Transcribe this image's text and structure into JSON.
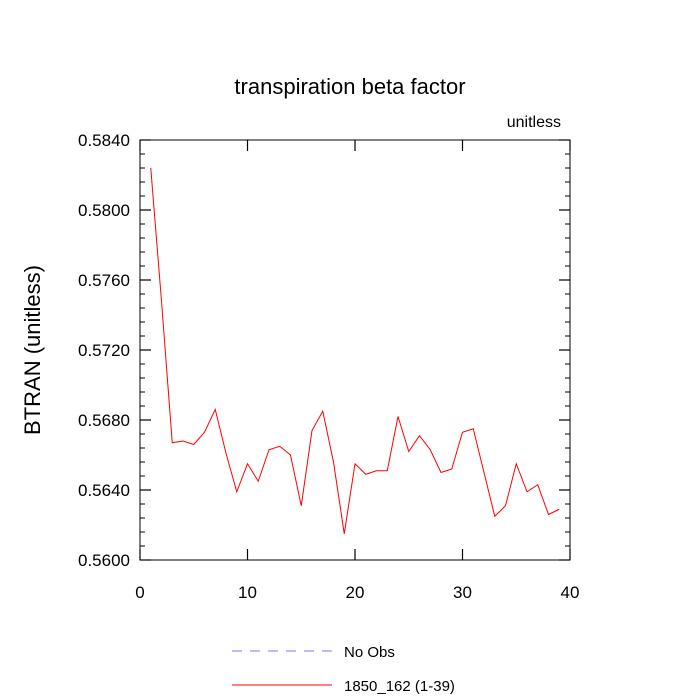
{
  "chart_data": {
    "type": "line",
    "title": "transpiration beta factor",
    "subtitle": "unitless",
    "xlabel": "",
    "ylabel": "BTRAN  (unitless)",
    "xlim": [
      0,
      40
    ],
    "ylim": [
      0.56,
      0.584
    ],
    "x_ticks": [
      0,
      10,
      20,
      30,
      40
    ],
    "y_ticks": [
      0.56,
      0.564,
      0.568,
      0.572,
      0.576,
      0.58,
      0.584
    ],
    "x_tick_labels": [
      "0",
      "10",
      "20",
      "30",
      "40"
    ],
    "y_tick_labels": [
      "0.5600",
      "0.5640",
      "0.5680",
      "0.5720",
      "0.5760",
      "0.5800",
      "0.5840"
    ],
    "grid": false,
    "legend_position": "bottom-center",
    "series": [
      {
        "name": "No Obs",
        "color": "#7777ff",
        "dashed": true,
        "x": [],
        "y": []
      },
      {
        "name": "1850_162 (1-39)",
        "color": "#ff0000",
        "dashed": false,
        "x": [
          1,
          2,
          3,
          4,
          5,
          6,
          7,
          8,
          9,
          10,
          11,
          12,
          13,
          14,
          15,
          16,
          17,
          18,
          19,
          20,
          21,
          22,
          23,
          24,
          25,
          26,
          27,
          28,
          29,
          30,
          31,
          32,
          33,
          34,
          35,
          36,
          37,
          38,
          39
        ],
        "y": [
          0.5824,
          0.5748,
          0.5667,
          0.5668,
          0.5666,
          0.5673,
          0.5686,
          0.5661,
          0.5639,
          0.5655,
          0.5645,
          0.5663,
          0.5665,
          0.566,
          0.5631,
          0.5674,
          0.5685,
          0.5656,
          0.5615,
          0.5655,
          0.5649,
          0.5651,
          0.5651,
          0.5682,
          0.5662,
          0.5671,
          0.5663,
          0.565,
          0.5652,
          0.5673,
          0.5675,
          0.565,
          0.5625,
          0.5631,
          0.5655,
          0.5639,
          0.5643,
          0.5626,
          0.5629
        ]
      }
    ]
  }
}
